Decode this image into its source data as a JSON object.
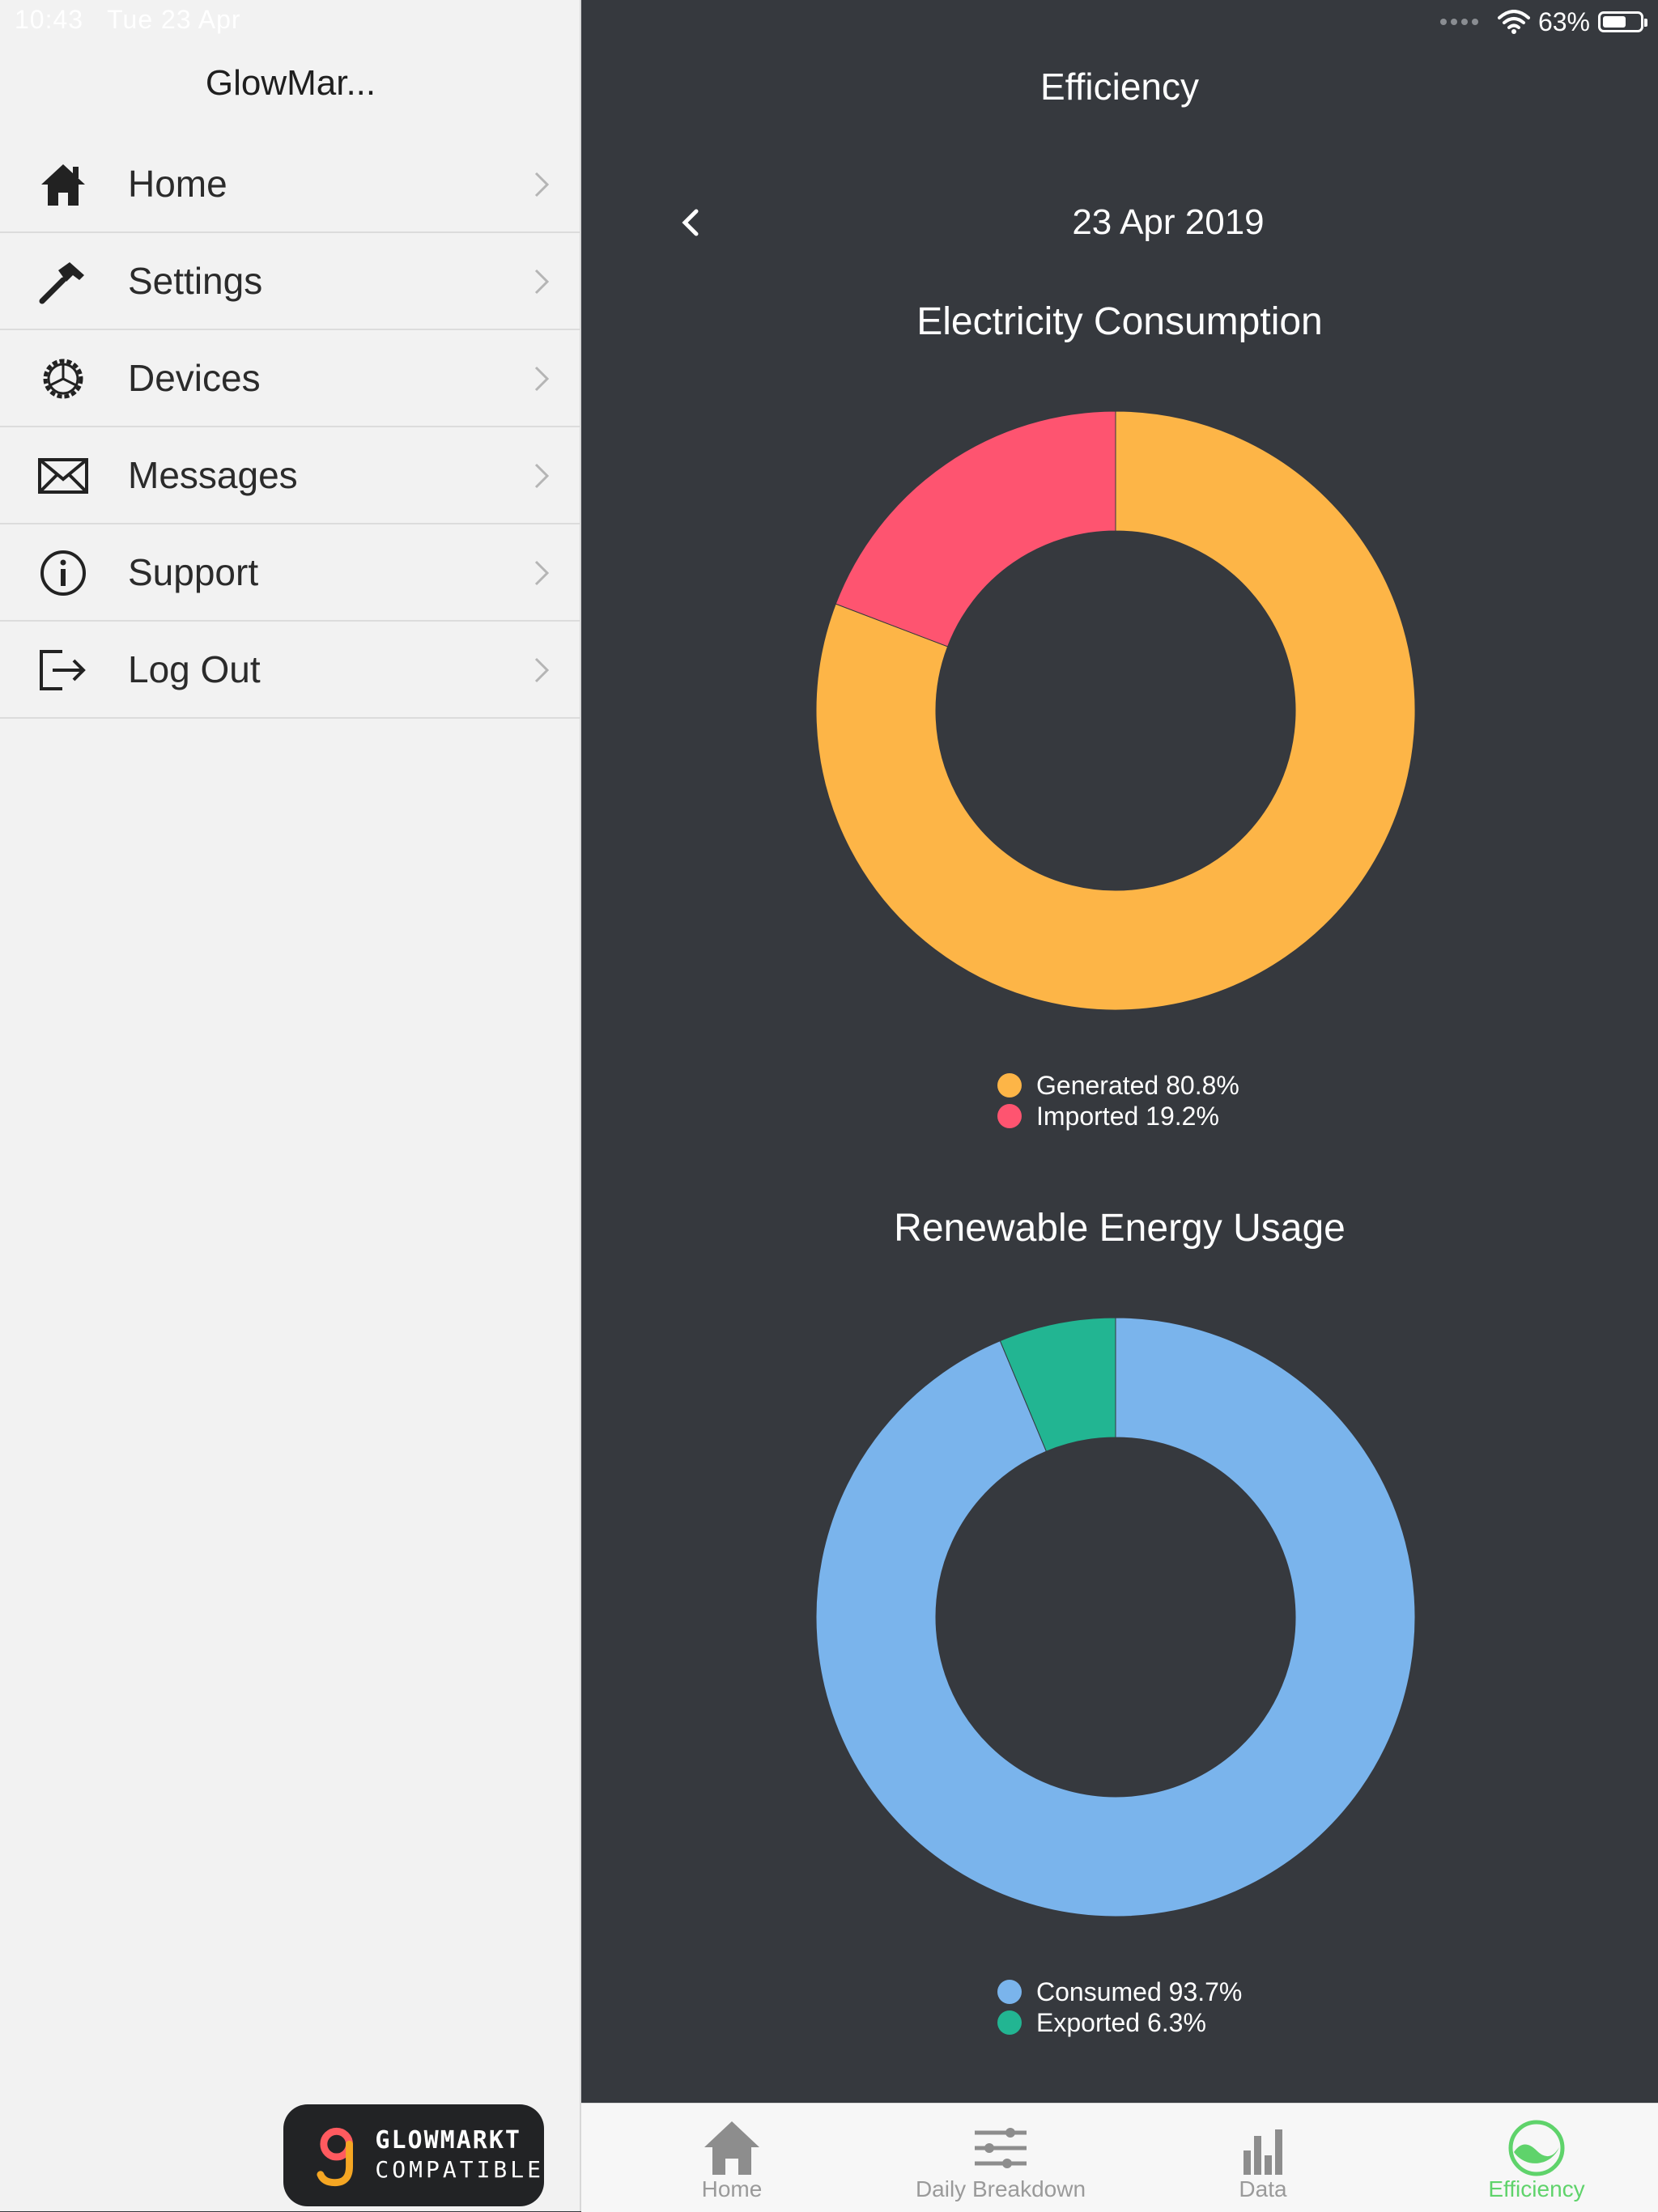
{
  "status_bar": {
    "time": "10:43",
    "date": "Tue 23 Apr",
    "battery": "63%",
    "battery_level": 0.63
  },
  "sidebar": {
    "title": "GlowMar...",
    "items": [
      {
        "label": "Home",
        "icon": "home-icon"
      },
      {
        "label": "Settings",
        "icon": "hammer-icon"
      },
      {
        "label": "Devices",
        "icon": "gear-icon"
      },
      {
        "label": "Messages",
        "icon": "envelope-icon"
      },
      {
        "label": "Support",
        "icon": "info-icon"
      },
      {
        "label": "Log Out",
        "icon": "logout-icon"
      }
    ],
    "badge": {
      "line1": "GLOWMARKT",
      "line2": "COMPATIBLE"
    }
  },
  "main": {
    "title": "Efficiency",
    "date": "23 Apr 2019"
  },
  "colors": {
    "generated": "#fdb547",
    "imported": "#fe5470",
    "consumed": "#7ab4ec",
    "exported": "#22b592",
    "active_tab": "#5fd36b"
  },
  "chart_data": [
    {
      "type": "pie",
      "title": "Electricity Consumption",
      "categories": [
        "Generated",
        "Imported"
      ],
      "values": [
        80.8,
        19.2
      ],
      "legend": [
        "Generated 80.8%",
        "Imported 19.2%"
      ],
      "colors": [
        "#fdb547",
        "#fe5470"
      ],
      "legend_position": "bottom"
    },
    {
      "type": "pie",
      "title": "Renewable Energy Usage",
      "categories": [
        "Consumed",
        "Exported"
      ],
      "values": [
        93.7,
        6.3
      ],
      "legend": [
        "Consumed 93.7%",
        "Exported 6.3%"
      ],
      "colors": [
        "#7ab4ec",
        "#22b592"
      ],
      "legend_position": "bottom"
    }
  ],
  "tabbar": {
    "tabs": [
      {
        "label": "Home",
        "icon": "home-icon",
        "active": false
      },
      {
        "label": "Daily Breakdown",
        "icon": "sliders-icon",
        "active": false
      },
      {
        "label": "Data",
        "icon": "bar-chart-icon",
        "active": false
      },
      {
        "label": "Efficiency",
        "icon": "efficiency-icon",
        "active": true
      }
    ]
  }
}
